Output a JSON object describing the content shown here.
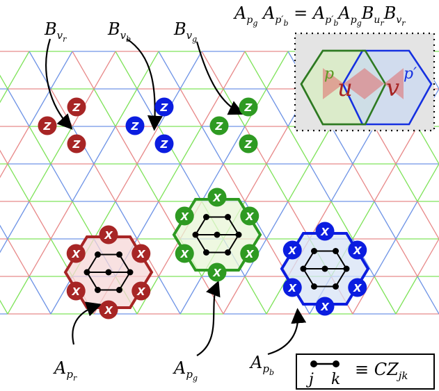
{
  "colors": {
    "red_lattice": "#e88a8a",
    "green_lattice": "#7fe35a",
    "blue_lattice": "#6f94e6",
    "red": "#a72525",
    "green": "#2e9a22",
    "blue": "#0b1de0",
    "red_fill": "#f6d7d7",
    "green_fill": "#e8f6d7",
    "blue_fill": "#d7e3f6",
    "inset_bg": "#e4e4e4"
  },
  "equation": {
    "lhs": "A_{p_g} A_{p'_b}",
    "rhs": "A_{p'_b} A_{p_g} B_{u_r} B_{v_r}"
  },
  "inset": {
    "p_label": "p",
    "p_prime_label": "p′",
    "u_label": "u",
    "v_label": "v"
  },
  "vertex_labels": {
    "Bvr": {
      "base": "B",
      "sub": "v",
      "subsub": "r"
    },
    "Bvb": {
      "base": "B",
      "sub": "v",
      "subsub": "b"
    },
    "Bvg": {
      "base": "B",
      "sub": "v",
      "subsub": "g"
    }
  },
  "plaquette_labels": {
    "Apr": {
      "base": "A",
      "sub": "p",
      "subsub": "r"
    },
    "Apg": {
      "base": "A",
      "sub": "p",
      "subsub": "g"
    },
    "Apb": {
      "base": "A",
      "sub": "p",
      "subsub": "b"
    }
  },
  "chips": {
    "z": "Z",
    "x": "X"
  },
  "legend": {
    "j": "j",
    "k": "k",
    "equiv": "≡ CZ",
    "sub": "jk"
  },
  "icons": {
    "z_chip": "circle-Z-badge",
    "x_chip": "circle-X-badge",
    "cz_gate": "dumbbell-cz-icon"
  }
}
